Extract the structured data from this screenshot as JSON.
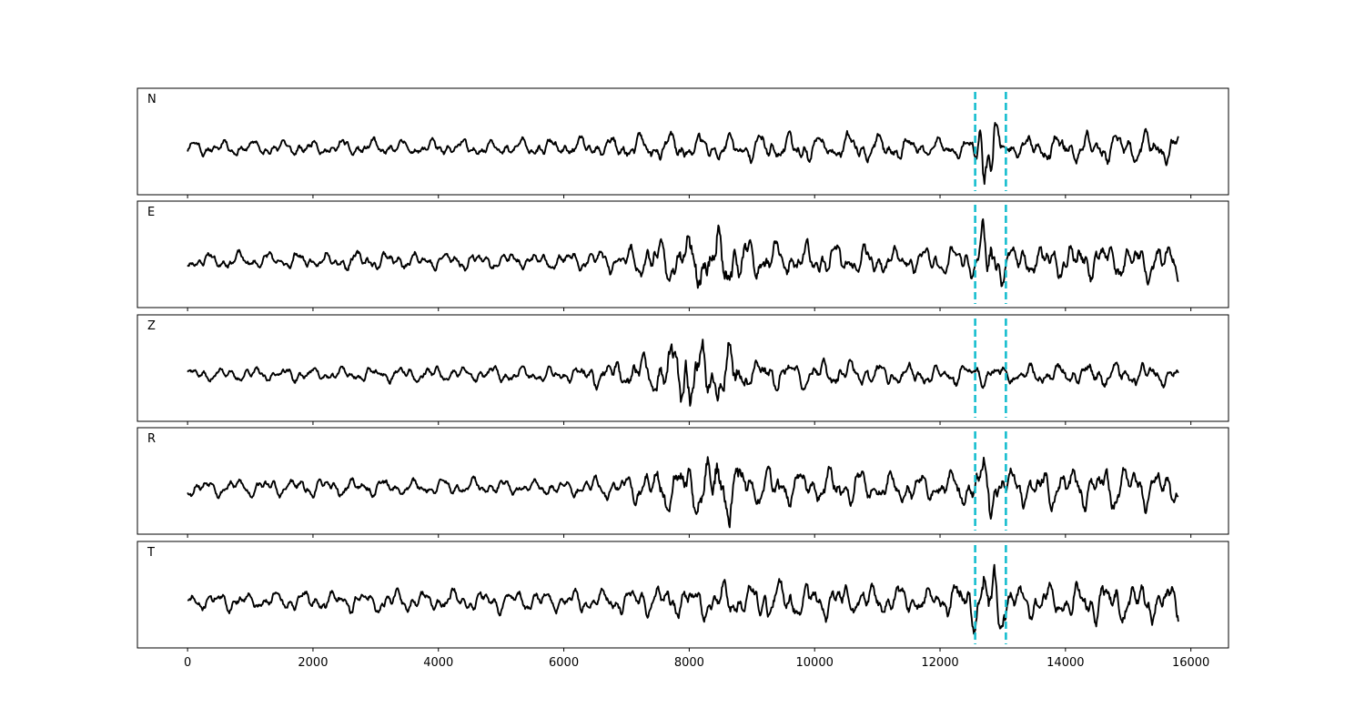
{
  "chart_data": {
    "type": "line",
    "xlim": [
      -800,
      16600
    ],
    "x_ticks": [
      0,
      2000,
      4000,
      6000,
      8000,
      10000,
      12000,
      14000,
      16000
    ],
    "x_tick_labels": [
      "0",
      "2000",
      "4000",
      "6000",
      "8000",
      "10000",
      "12000",
      "14000",
      "16000"
    ],
    "x_start": 0,
    "x_end": 15800,
    "markers": [
      12560,
      13050
    ],
    "marker_color": "#17becf",
    "line_color": "#000000",
    "grid": false,
    "panels": [
      {
        "label": "N",
        "seed": 11,
        "envelope": [
          [
            0,
            0.18
          ],
          [
            2000,
            0.18
          ],
          [
            4000,
            0.2
          ],
          [
            6000,
            0.2
          ],
          [
            7500,
            0.32
          ],
          [
            8200,
            0.3
          ],
          [
            9000,
            0.33
          ],
          [
            11000,
            0.3
          ],
          [
            12500,
            0.2
          ],
          [
            12650,
            1.0
          ],
          [
            12800,
            0.85
          ],
          [
            13000,
            0.22
          ],
          [
            14000,
            0.35
          ],
          [
            15800,
            0.35
          ]
        ]
      },
      {
        "label": "E",
        "seed": 23,
        "envelope": [
          [
            0,
            0.18
          ],
          [
            3000,
            0.2
          ],
          [
            6000,
            0.2
          ],
          [
            7000,
            0.3
          ],
          [
            7600,
            0.5
          ],
          [
            8000,
            0.6
          ],
          [
            8500,
            0.75
          ],
          [
            9000,
            0.45
          ],
          [
            10000,
            0.35
          ],
          [
            12000,
            0.3
          ],
          [
            12600,
            0.4
          ],
          [
            12700,
            1.0
          ],
          [
            12900,
            0.6
          ],
          [
            13100,
            0.35
          ],
          [
            14000,
            0.4
          ],
          [
            15800,
            0.42
          ]
        ]
      },
      {
        "label": "Z",
        "seed": 37,
        "envelope": [
          [
            0,
            0.15
          ],
          [
            3000,
            0.18
          ],
          [
            6000,
            0.18
          ],
          [
            6700,
            0.3
          ],
          [
            7500,
            0.45
          ],
          [
            8050,
            1.0
          ],
          [
            8300,
            0.7
          ],
          [
            8500,
            0.85
          ],
          [
            9000,
            0.35
          ],
          [
            10000,
            0.3
          ],
          [
            12000,
            0.25
          ],
          [
            13000,
            0.22
          ],
          [
            14500,
            0.28
          ],
          [
            15800,
            0.25
          ]
        ]
      },
      {
        "label": "R",
        "seed": 53,
        "envelope": [
          [
            0,
            0.2
          ],
          [
            3000,
            0.2
          ],
          [
            6000,
            0.18
          ],
          [
            7000,
            0.28
          ],
          [
            7700,
            0.55
          ],
          [
            8000,
            0.6
          ],
          [
            8500,
            0.9
          ],
          [
            9000,
            0.45
          ],
          [
            10000,
            0.4
          ],
          [
            12000,
            0.35
          ],
          [
            12600,
            0.55
          ],
          [
            12750,
            0.75
          ],
          [
            13000,
            0.45
          ],
          [
            14000,
            0.45
          ],
          [
            15800,
            0.45
          ]
        ]
      },
      {
        "label": "T",
        "seed": 71,
        "envelope": [
          [
            0,
            0.2
          ],
          [
            3000,
            0.25
          ],
          [
            6000,
            0.25
          ],
          [
            7000,
            0.3
          ],
          [
            8000,
            0.35
          ],
          [
            9000,
            0.45
          ],
          [
            10000,
            0.4
          ],
          [
            12000,
            0.3
          ],
          [
            12600,
            0.6
          ],
          [
            12750,
            1.0
          ],
          [
            12950,
            0.7
          ],
          [
            13100,
            0.35
          ],
          [
            14000,
            0.4
          ],
          [
            14700,
            0.5
          ],
          [
            15800,
            0.42
          ]
        ]
      }
    ]
  }
}
